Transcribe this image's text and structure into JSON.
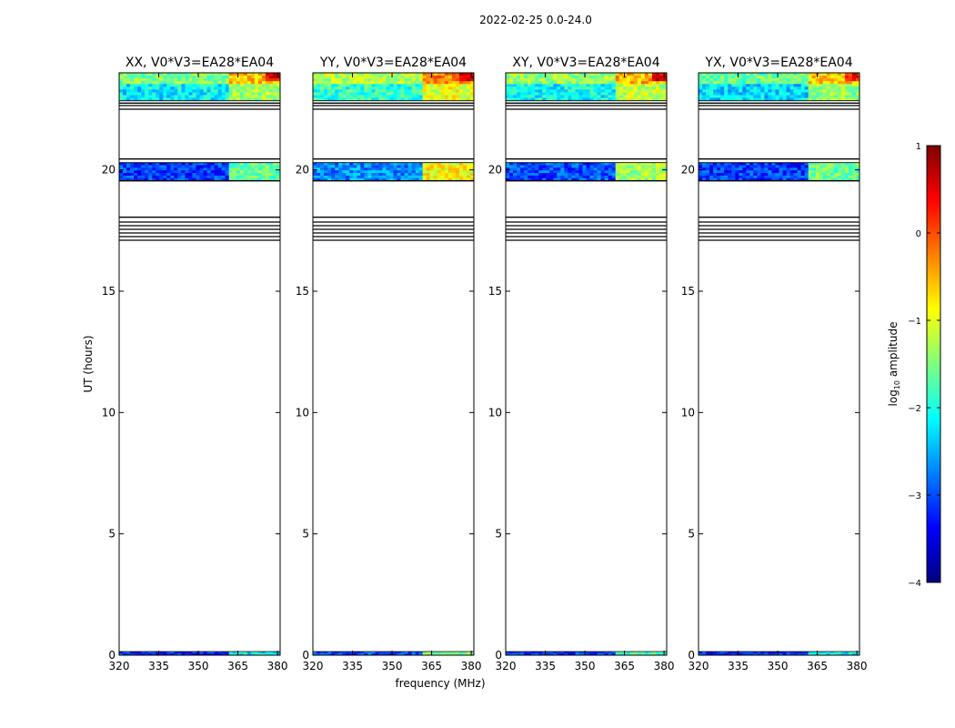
{
  "figure_title": "2022-02-25 0.0-24.0",
  "chart_data": {
    "type": "heatmap",
    "title": "2022-02-25 0.0-24.0",
    "xlabel": "frequency (MHz)",
    "ylabel": "UT (hours)",
    "xlim": [
      320,
      381
    ],
    "ylim": [
      0,
      24
    ],
    "x_ticks": [
      320,
      335,
      350,
      365,
      380
    ],
    "x_tick_labels": [
      "320",
      "335",
      "350",
      "365",
      "380"
    ],
    "y_ticks": [
      0,
      5,
      10,
      15,
      20
    ],
    "y_tick_labels": [
      "0",
      "5",
      "10",
      "15",
      "20"
    ],
    "panels": [
      {
        "name": "xx",
        "title": "XX, V0*V3=EA28*EA04"
      },
      {
        "name": "yy",
        "title": "YY, V0*V3=EA28*EA04"
      },
      {
        "name": "xy",
        "title": "XY, V0*V3=EA28*EA04"
      },
      {
        "name": "yx",
        "title": "YX, V0*V3=EA28*EA04"
      }
    ],
    "data_time_ranges": [
      {
        "start": 0.0,
        "end": 0.15
      },
      {
        "start": 19.55,
        "end": 20.3
      },
      {
        "start": 22.85,
        "end": 24.0
      }
    ],
    "empty_scan_lines": [
      17.1,
      17.25,
      17.4,
      17.55,
      17.7,
      17.85,
      18.05,
      22.5,
      22.65,
      22.75
    ],
    "boundary_lines": [
      19.55,
      20.45
    ],
    "colorbar": {
      "label": "log10 amplitude",
      "label_main": "log",
      "label_sub": "10",
      "label_rest": " amplitude",
      "range": [
        -4,
        1
      ],
      "ticks": [
        1,
        0,
        -1,
        -2,
        -3,
        -4
      ],
      "tick_labels": [
        "1",
        "0",
        "−1",
        "−2",
        "−3",
        "−4"
      ],
      "colormap": "jet",
      "stops": [
        "#00007f",
        "#0000ff",
        "#007fff",
        "#00ffff",
        "#7fff7f",
        "#ffff00",
        "#ff7f00",
        "#ff0000",
        "#7f0000"
      ]
    }
  }
}
